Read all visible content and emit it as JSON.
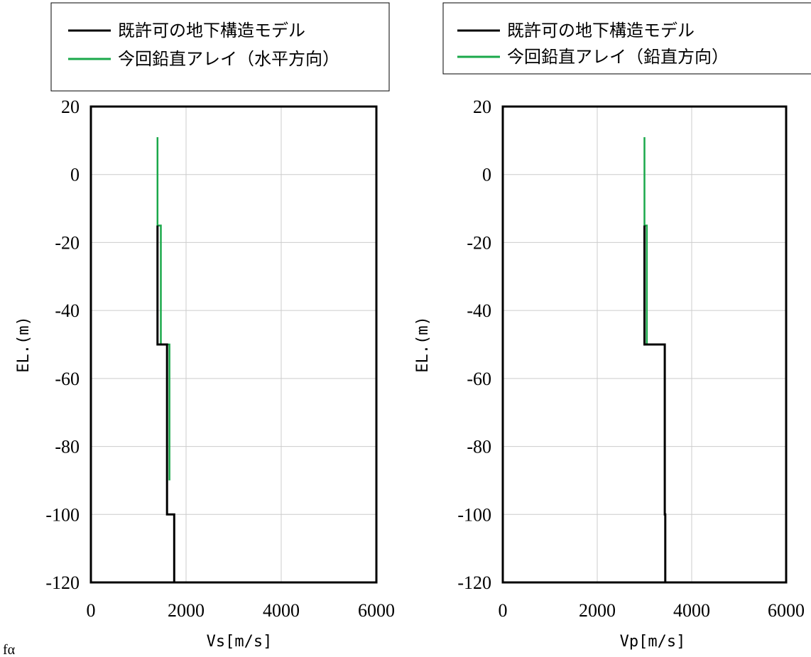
{
  "chart_data": [
    {
      "type": "line",
      "xlabel": "Vs[m/s]",
      "ylabel": "EL.(m)",
      "xlim": [
        0,
        6000
      ],
      "ylim": [
        -120,
        20
      ],
      "xticks": [
        0,
        2000,
        4000,
        6000
      ],
      "yticks": [
        20,
        0,
        -20,
        -40,
        -60,
        -80,
        -100,
        -120
      ],
      "grid": true,
      "legend_position": "top",
      "series": [
        {
          "name": "既許可の地下構造モデル",
          "color": "#000000",
          "points": [
            [
              1400,
              -15
            ],
            [
              1400,
              -50
            ],
            [
              1600,
              -50
            ],
            [
              1600,
              -100
            ],
            [
              1750,
              -100
            ],
            [
              1750,
              -120
            ]
          ]
        },
        {
          "name": "今回鉛直アレイ（水平方向）",
          "color": "#1aa84a",
          "points": [
            [
              1400,
              11
            ],
            [
              1400,
              -15
            ],
            [
              1470,
              -15
            ],
            [
              1470,
              -50
            ],
            [
              1650,
              -50
            ],
            [
              1650,
              -90
            ]
          ]
        }
      ]
    },
    {
      "type": "line",
      "xlabel": "Vp[m/s]",
      "ylabel": "EL.(m)",
      "xlim": [
        0,
        6000
      ],
      "ylim": [
        -120,
        20
      ],
      "xticks": [
        0,
        2000,
        4000,
        6000
      ],
      "yticks": [
        20,
        0,
        -20,
        -40,
        -60,
        -80,
        -100,
        -120
      ],
      "grid": true,
      "legend_position": "top",
      "series": [
        {
          "name": "既許可の地下構造モデル",
          "color": "#000000",
          "points": [
            [
              3000,
              -15
            ],
            [
              3000,
              -50
            ],
            [
              3430,
              -50
            ],
            [
              3430,
              -100
            ],
            [
              3440,
              -100
            ],
            [
              3440,
              -120
            ]
          ]
        },
        {
          "name": "今回鉛直アレイ（鉛直方向）",
          "color": "#1aa84a",
          "points": [
            [
              3000,
              11
            ],
            [
              3000,
              -15
            ],
            [
              3050,
              -15
            ],
            [
              3050,
              -50
            ],
            [
              3430,
              -50
            ],
            [
              3430,
              -90
            ]
          ]
        }
      ]
    }
  ],
  "footer_fragment": "fα"
}
